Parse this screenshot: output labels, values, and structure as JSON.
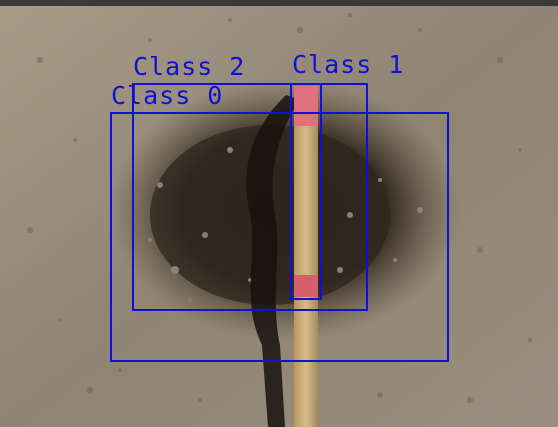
{
  "image": {
    "subject": "soil-ground-with-wooden-stake",
    "annotation_color": "#1010d8"
  },
  "detections": [
    {
      "label": "Class 0"
    },
    {
      "label": "Class 2"
    },
    {
      "label": "Class 1"
    }
  ]
}
